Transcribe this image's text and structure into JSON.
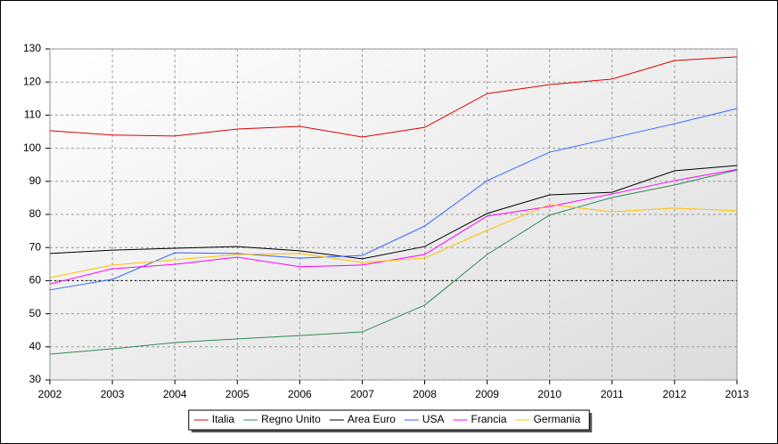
{
  "chart_data": {
    "type": "line",
    "x": [
      2002,
      2003,
      2004,
      2005,
      2006,
      2007,
      2008,
      2009,
      2010,
      2011,
      2012,
      2013
    ],
    "xlim": [
      2002,
      2013
    ],
    "xticks": [
      2002,
      2003,
      2004,
      2005,
      2006,
      2007,
      2008,
      2009,
      2010,
      2011,
      2012,
      2013
    ],
    "ylim": [
      30,
      130
    ],
    "yticks": [
      30,
      40,
      50,
      60,
      70,
      80,
      90,
      100,
      110,
      120,
      130
    ],
    "grid": true,
    "legend": "bottom",
    "reference_line": 60,
    "series": [
      {
        "name": "Italia",
        "color": "#e00000",
        "values": [
          105.3,
          104.0,
          103.7,
          105.8,
          106.6,
          103.4,
          106.3,
          116.5,
          119.2,
          120.9,
          126.5,
          127.6
        ]
      },
      {
        "name": "Regno Unito",
        "color": "#2e8b57",
        "values": [
          37.8,
          39.4,
          41.3,
          42.4,
          43.4,
          44.5,
          52.6,
          67.9,
          79.8,
          85.1,
          88.9,
          93.4
        ]
      },
      {
        "name": "Area Euro",
        "color": "#000000",
        "values": [
          68.2,
          69.2,
          69.8,
          70.3,
          69.0,
          66.6,
          70.3,
          80.3,
          85.9,
          86.7,
          93.2,
          94.8
        ]
      },
      {
        "name": "USA",
        "color": "#3366ff",
        "values": [
          57.2,
          60.4,
          68.4,
          68.2,
          66.8,
          67.6,
          76.5,
          90.2,
          98.8,
          103.1,
          107.4,
          112.0
        ]
      },
      {
        "name": "Francia",
        "color": "#ff00ff",
        "values": [
          59.0,
          63.6,
          64.9,
          67.1,
          64.2,
          64.7,
          67.9,
          79.5,
          82.4,
          86.2,
          90.2,
          93.6
        ]
      },
      {
        "name": "Germania",
        "color": "#ffc000",
        "values": [
          60.9,
          64.7,
          66.3,
          67.9,
          68.2,
          65.5,
          66.8,
          75.2,
          83.0,
          80.8,
          81.9,
          81.1
        ]
      }
    ]
  }
}
